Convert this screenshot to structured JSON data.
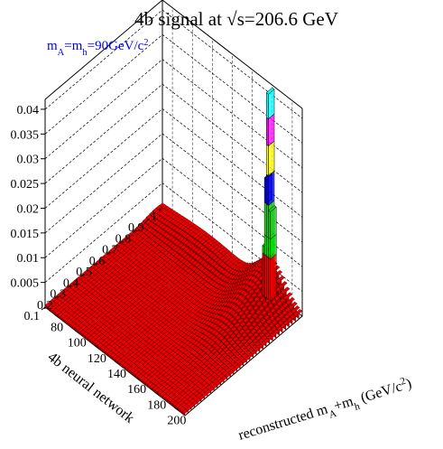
{
  "chart_data": {
    "type": "lego3d",
    "title": "4b signal at √s=206.6 GeV",
    "annotation": {
      "parts": [
        {
          "text": "m",
          "sub": false
        },
        {
          "text": "A",
          "sub": true
        },
        {
          "text": "=m",
          "sub": false
        },
        {
          "text": "h",
          "sub": true
        },
        {
          "text": "=90GeV/c",
          "sub": false
        },
        {
          "text": "2",
          "sup": true
        }
      ],
      "color": "#0000ee"
    },
    "x_axis": {
      "label_parts": [
        {
          "text": "reconstructed m",
          "sub": false
        },
        {
          "text": "A",
          "sub": true
        },
        {
          "text": "+m",
          "sub": false
        },
        {
          "text": "h",
          "sub": true
        },
        {
          "text": " (GeV/c",
          "sub": false
        },
        {
          "text": "2",
          "sup": true
        },
        {
          "text": ")",
          "sub": false
        }
      ],
      "range": [
        70,
        210
      ],
      "ticks": [
        80,
        100,
        120,
        140,
        160,
        180,
        200
      ]
    },
    "y_axis": {
      "label": "4b neural network",
      "range": [
        0.1,
        1.0
      ],
      "ticks": [
        "0.1",
        "0.2",
        "0.3",
        "0.4",
        "0.5",
        "0.6",
        "0.7",
        "0.8",
        "0.9",
        "1"
      ]
    },
    "z_axis": {
      "range": [
        0,
        0.042
      ],
      "ticks": [
        "0.005",
        "0.01",
        "0.015",
        "0.02",
        "0.025",
        "0.03",
        "0.035",
        "0.04"
      ]
    },
    "peak": {
      "x": 181,
      "y": 1.0,
      "z": 0.0415
    },
    "color_levels": [
      {
        "max": 0.0085,
        "color": "#ee0000"
      },
      {
        "max": 0.0125,
        "color": "#00dd00"
      },
      {
        "max": 0.019,
        "color": "#22cc22"
      },
      {
        "max": 0.025,
        "color": "#0000ee"
      },
      {
        "max": 0.031,
        "color": "#ffff00"
      },
      {
        "max": 0.0365,
        "color": "#ff00ff"
      },
      {
        "max": 0.05,
        "color": "#00ffff"
      }
    ],
    "grid": true
  }
}
